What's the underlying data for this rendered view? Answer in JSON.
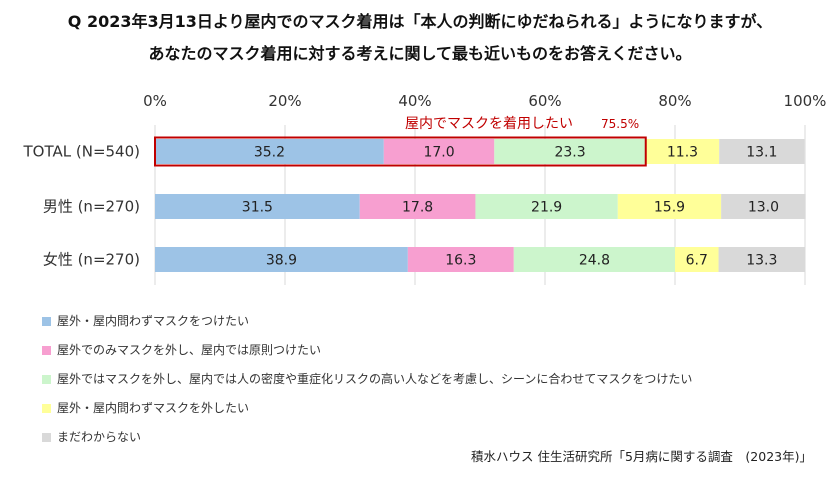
{
  "title_lines": [
    "Q 2023年3月13日より屋内でのマスク着用は「本人の判断にゆだねられる」ようになりますが、",
    "あなたのマスク着用に対する考えに関して最も近いものをお答えください。"
  ],
  "chart_data": {
    "type": "bar",
    "orientation": "horizontal-stacked-100",
    "xlim": [
      0,
      100
    ],
    "x_ticks": [
      "0%",
      "20%",
      "40%",
      "60%",
      "80%",
      "100%"
    ],
    "grid": true,
    "categories": [
      "TOTAL (N=540)",
      "男性 (n=270)",
      "女性 (n=270)"
    ],
    "series": [
      {
        "name": "屋外・屋内問わずマスクをつけたい",
        "color": "#9dc3e6",
        "values": [
          35.2,
          31.5,
          38.9
        ]
      },
      {
        "name": "屋外でのみマスクを外し、屋内では原則つけたい",
        "color": "#f79fd0",
        "values": [
          17.0,
          17.8,
          16.3
        ]
      },
      {
        "name": "屋外ではマスクを外し、屋内では人の密度や重症化リスクの高い人などを考慮し、シーンに合わせてマスクをつけたい",
        "color": "#ccf5cc",
        "values": [
          23.3,
          21.9,
          24.8
        ]
      },
      {
        "name": "屋外・屋内問わずマスクを外したい",
        "color": "#ffff99",
        "values": [
          11.3,
          15.9,
          6.7
        ]
      },
      {
        "name": "まだわからない",
        "color": "#d9d9d9",
        "values": [
          13.1,
          13.0,
          13.3
        ]
      }
    ],
    "annotation": {
      "text": "屋内でマスクを着用したい",
      "value": "75.5%",
      "color": "#c00000",
      "row": 0,
      "series_span": [
        0,
        2
      ]
    }
  },
  "source": "積水ハウス 住生活研究所「5月病に関する調査　(2023年)」"
}
